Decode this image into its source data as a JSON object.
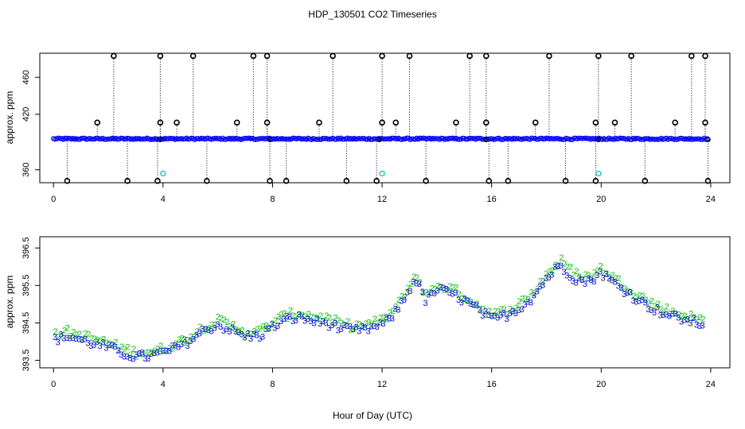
{
  "title": "HDP_130501  CO2 Timeseries",
  "xlabel": "Hour of Day (UTC)",
  "colors": {
    "black": "#000000",
    "blue": "#0000ff",
    "cyan": "#00cccc",
    "green": "#00cc00"
  },
  "chart_data": [
    {
      "type": "scatter",
      "ylabel": "approx. ppm",
      "xlim": [
        -0.5,
        24.7
      ],
      "ylim": [
        346,
        486
      ],
      "xticks": [
        0,
        4,
        8,
        12,
        16,
        20,
        24
      ],
      "yticks": [
        360,
        420,
        460
      ],
      "ytick_labels": [
        "360",
        "420",
        "460"
      ],
      "baseline": 393.5,
      "high_spikes": [
        2.2,
        3.9,
        5.1,
        7.3,
        7.8,
        10.2,
        12.0,
        13.0,
        15.2,
        15.8,
        18.1,
        19.9,
        21.1,
        23.3,
        23.8
      ],
      "high_value": 483,
      "mid_spikes": [
        1.6,
        3.9,
        4.5,
        6.7,
        7.8,
        9.7,
        12.0,
        12.5,
        14.7,
        15.8,
        17.6,
        19.8,
        20.5,
        22.7,
        23.8
      ],
      "mid_value": 411,
      "low_spikes": [
        0.5,
        2.7,
        3.8,
        5.6,
        7.9,
        8.5,
        10.7,
        11.8,
        13.6,
        15.9,
        16.6,
        18.7,
        19.8,
        21.6,
        23.9
      ],
      "low_value": 348,
      "cyan_points": [
        [
          4.0,
          356
        ],
        [
          12.0,
          356
        ],
        [
          19.9,
          356
        ]
      ],
      "black_baseline_markers": [
        3.9,
        7.9,
        11.9,
        15.8,
        19.9,
        23.9
      ]
    },
    {
      "type": "scatter",
      "ylabel": "approx. ppm",
      "xlim": [
        -0.5,
        24.7
      ],
      "ylim": [
        393.3,
        396.8
      ],
      "xticks": [
        0,
        4,
        8,
        12,
        16,
        20,
        24
      ],
      "yticks": [
        393.5,
        394.5,
        395.5,
        396.5
      ],
      "ytick_labels": [
        "393.5",
        "394.5",
        "395.5",
        "396.5"
      ],
      "series": [
        {
          "marker": "2",
          "color": "#00cc00"
        },
        {
          "marker": "3",
          "color": "#0000ff"
        }
      ],
      "trend": [
        [
          0.0,
          394.05
        ],
        [
          0.5,
          394.15
        ],
        [
          1.0,
          394.05
        ],
        [
          1.5,
          393.95
        ],
        [
          2.0,
          393.85
        ],
        [
          2.5,
          393.7
        ],
        [
          3.0,
          393.6
        ],
        [
          3.5,
          393.62
        ],
        [
          4.0,
          393.7
        ],
        [
          4.5,
          393.85
        ],
        [
          5.0,
          394.05
        ],
        [
          5.5,
          394.3
        ],
        [
          6.0,
          394.45
        ],
        [
          6.5,
          394.3
        ],
        [
          7.0,
          394.15
        ],
        [
          7.5,
          394.15
        ],
        [
          8.0,
          394.4
        ],
        [
          8.5,
          394.6
        ],
        [
          9.0,
          394.65
        ],
        [
          9.5,
          394.55
        ],
        [
          10.0,
          394.5
        ],
        [
          10.5,
          394.35
        ],
        [
          11.0,
          394.3
        ],
        [
          11.5,
          394.35
        ],
        [
          12.0,
          394.45
        ],
        [
          12.5,
          394.8
        ],
        [
          13.0,
          395.4
        ],
        [
          13.2,
          395.7
        ],
        [
          13.6,
          395.1
        ],
        [
          14.0,
          395.4
        ],
        [
          14.5,
          395.3
        ],
        [
          15.0,
          395.1
        ],
        [
          15.5,
          394.85
        ],
        [
          16.0,
          394.6
        ],
        [
          16.5,
          394.7
        ],
        [
          17.0,
          394.9
        ],
        [
          17.5,
          395.2
        ],
        [
          18.0,
          395.7
        ],
        [
          18.5,
          396.05
        ],
        [
          19.0,
          395.7
        ],
        [
          19.5,
          395.6
        ],
        [
          20.0,
          395.85
        ],
        [
          20.5,
          395.55
        ],
        [
          21.0,
          395.3
        ],
        [
          21.5,
          395.05
        ],
        [
          22.0,
          394.85
        ],
        [
          22.5,
          394.7
        ],
        [
          23.0,
          394.6
        ],
        [
          23.5,
          394.5
        ],
        [
          23.8,
          394.45
        ]
      ]
    }
  ]
}
